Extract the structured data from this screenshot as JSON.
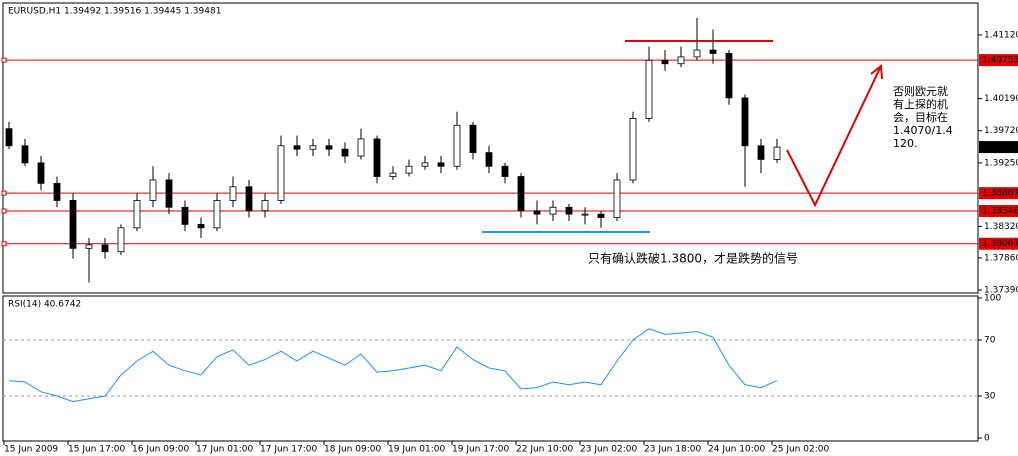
{
  "chart_data": [
    {
      "type": "candlestick",
      "title": "EURUSD,H1  1.39492 1.39516 1.39445 1.39481",
      "categories": [
        "15 Jun 2009",
        null,
        null,
        null,
        "15 Jun 17:00",
        null,
        null,
        null,
        "16 Jun 09:00",
        null,
        null,
        null,
        "17 Jun 01:00",
        null,
        null,
        null,
        "17 Jun 17:00",
        null,
        null,
        null,
        "18 Jun 09:00",
        null,
        null,
        null,
        "19 Jun 01:00",
        null,
        null,
        null,
        "19 Jun 17:00",
        null,
        null,
        null,
        "22 Jun 10:00",
        null,
        null,
        null,
        "23 Jun 02:00",
        null,
        null,
        null,
        "23 Jun 18:00",
        null,
        null,
        null,
        "24 Jun 10:00",
        null,
        null,
        null,
        "25 Jun 02:00"
      ],
      "open": [
        1.3975,
        1.395,
        1.3925,
        1.3895,
        1.387,
        1.38,
        1.3805,
        1.3795,
        1.383,
        1.387,
        1.39,
        1.386,
        1.3835,
        1.383,
        1.387,
        1.389,
        1.3855,
        1.387,
        1.395,
        1.3945,
        1.395,
        1.3945,
        1.3935,
        1.396,
        1.3905,
        1.391,
        1.392,
        1.3925,
        1.392,
        1.398,
        1.394,
        1.392,
        1.3905,
        1.3855,
        1.385,
        1.386,
        1.385,
        1.385,
        1.3845,
        1.39,
        1.399,
        1.4075,
        1.407,
        1.408,
        1.409,
        1.4085,
        1.402,
        1.395,
        1.393
      ],
      "high": [
        1.3985,
        1.396,
        1.3935,
        1.3905,
        1.388,
        1.3815,
        1.3815,
        1.3835,
        1.388,
        1.392,
        1.391,
        1.387,
        1.3845,
        1.388,
        1.3905,
        1.39,
        1.388,
        1.3965,
        1.3965,
        1.396,
        1.396,
        1.3955,
        1.3975,
        1.3965,
        1.392,
        1.393,
        1.3935,
        1.3935,
        1.4,
        1.3985,
        1.395,
        1.3925,
        1.391,
        1.387,
        1.387,
        1.3865,
        1.386,
        1.3855,
        1.391,
        1.4,
        1.4095,
        1.409,
        1.4095,
        1.4137,
        1.412,
        1.409,
        1.4025,
        1.396,
        1.396
      ],
      "low": [
        1.3945,
        1.392,
        1.3885,
        1.386,
        1.3785,
        1.375,
        1.3785,
        1.379,
        1.3825,
        1.386,
        1.385,
        1.3825,
        1.3815,
        1.3825,
        1.386,
        1.3845,
        1.3845,
        1.3865,
        1.3935,
        1.3935,
        1.3935,
        1.3925,
        1.393,
        1.3895,
        1.39,
        1.3905,
        1.3915,
        1.391,
        1.3915,
        1.393,
        1.391,
        1.3895,
        1.3845,
        1.3835,
        1.384,
        1.384,
        1.3835,
        1.383,
        1.384,
        1.3895,
        1.3985,
        1.406,
        1.4065,
        1.4075,
        1.407,
        1.401,
        1.389,
        1.391,
        1.3925
      ],
      "close": [
        1.395,
        1.3925,
        1.3895,
        1.387,
        1.38,
        1.3805,
        1.3795,
        1.383,
        1.387,
        1.39,
        1.386,
        1.3835,
        1.383,
        1.387,
        1.389,
        1.3855,
        1.387,
        1.395,
        1.3945,
        1.395,
        1.3945,
        1.3935,
        1.396,
        1.3905,
        1.391,
        1.392,
        1.3925,
        1.392,
        1.398,
        1.394,
        1.392,
        1.3905,
        1.3855,
        1.385,
        1.386,
        1.385,
        1.385,
        1.3845,
        1.39,
        1.399,
        1.4075,
        1.407,
        1.408,
        1.409,
        1.4085,
        1.402,
        1.395,
        1.393,
        1.3948
      ],
      "up_color": "#ffffff",
      "down_color": "#000000",
      "ylim": [
        1.37361,
        1.41559
      ],
      "yticks": [
        {
          "value": 1.4112,
          "label": "1.41120"
        },
        {
          "value": 1.4019,
          "label": "1.40190"
        },
        {
          "value": 1.3972,
          "label": "1.39720"
        },
        {
          "value": 1.3925,
          "label": "1.39250"
        },
        {
          "value": 1.3832,
          "label": "1.38320"
        },
        {
          "value": 1.3786,
          "label": "1.37860"
        },
        {
          "value": 1.3739,
          "label": "1.37390"
        }
      ],
      "levels": [
        1.40753,
        1.38807,
        1.38546,
        1.38067
      ],
      "level_color": "#e00000",
      "last_price": 1.39481,
      "annotations": [
        {
          "text": "只有确认跌破1.3800，才是跌势的信号",
          "color": "#1e90ff"
        },
        {
          "lines": [
            "否则欧元就",
            "有上探的机",
            "会，目标在",
            "1.4070/1.4",
            "120."
          ],
          "color": "#e00000"
        }
      ]
    },
    {
      "type": "line",
      "title": "RSI(14) 40.6742",
      "values": [
        41,
        40,
        33,
        30,
        26,
        28,
        30,
        45,
        55,
        62,
        52,
        48,
        45,
        58,
        63,
        52,
        56,
        62,
        55,
        62,
        57,
        52,
        60,
        47,
        48,
        50,
        52,
        48,
        65,
        56,
        50,
        48,
        35,
        36,
        40,
        38,
        40,
        38,
        55,
        70,
        78,
        74,
        75,
        76,
        72,
        52,
        38,
        36,
        41
      ],
      "color": "#1e90ff",
      "ylim": [
        0,
        100
      ],
      "yticks": [
        100,
        70,
        30,
        0
      ]
    }
  ]
}
